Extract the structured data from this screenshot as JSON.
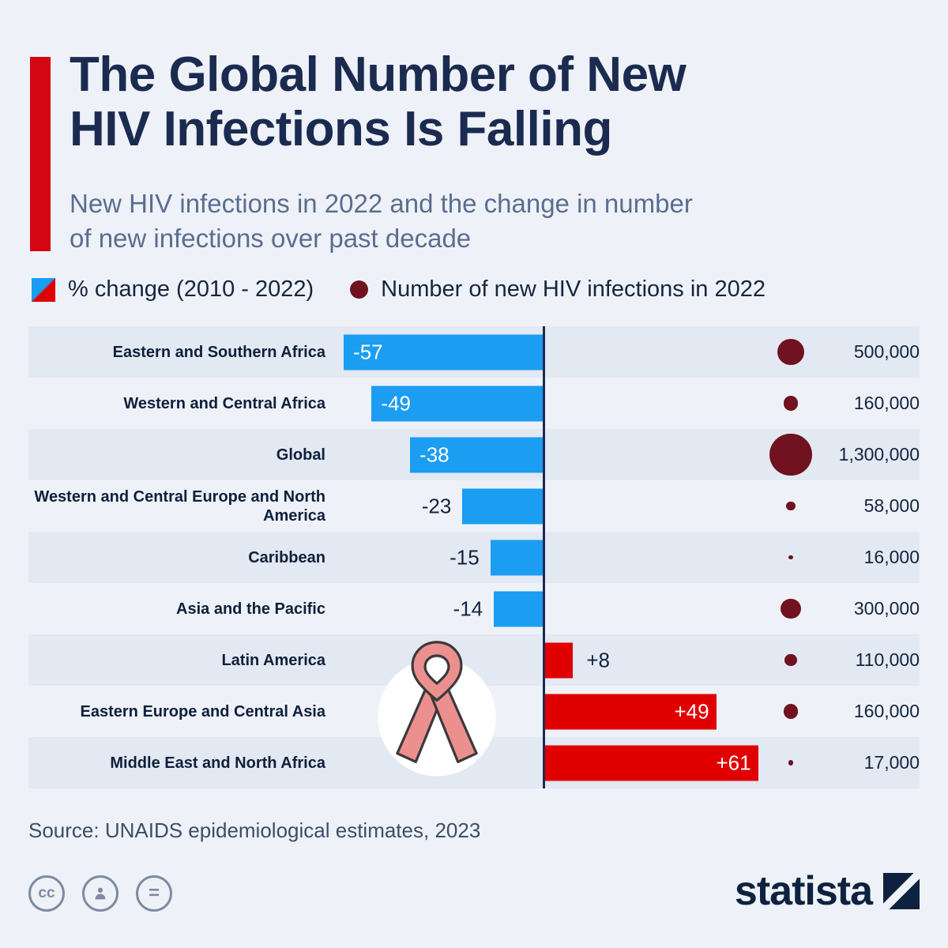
{
  "header": {
    "title_line1": "The Global Number of New",
    "title_line2": "HIV Infections Is Falling",
    "subtitle_line1": "New HIV infections in 2022 and the change in number",
    "subtitle_line2": "of new infections over past decade"
  },
  "legend": {
    "change_label": "% change (2010 - 2022)",
    "infections_label": "Number of new HIV infections in 2022"
  },
  "chart_data": {
    "type": "bar",
    "orientation": "horizontal",
    "diverging": true,
    "title": "The Global Number of New HIV Infections Is Falling",
    "xlabel": "",
    "ylabel": "",
    "xlim": [
      -60,
      65
    ],
    "zero_line": true,
    "legend_position": "top",
    "categories": [
      "Eastern and Southern Africa",
      "Western and Central Africa",
      "Global",
      "Western and Central Europe and North America",
      "Caribbean",
      "Asia and the Pacific",
      "Latin America",
      "Eastern Europe and Central Asia",
      "Middle East and North Africa"
    ],
    "series": [
      {
        "name": "% change (2010 - 2022)",
        "values": [
          -57,
          -49,
          -38,
          -23,
          -15,
          -14,
          8,
          49,
          61
        ],
        "labels": [
          "-57",
          "-49",
          "-38",
          "-23",
          "-15",
          "-14",
          "+8",
          "+49",
          "+61"
        ],
        "color_negative": "#1b9df2",
        "color_positive": "#e00000"
      },
      {
        "name": "Number of new HIV infections in 2022",
        "values": [
          500000,
          160000,
          1300000,
          58000,
          16000,
          300000,
          110000,
          160000,
          17000
        ],
        "labels": [
          "500,000",
          "160,000",
          "1,300,000",
          "58,000",
          "16,000",
          "300,000",
          "110,000",
          "160,000",
          "17,000"
        ],
        "color": "#70121f"
      }
    ]
  },
  "colors": {
    "accent_red": "#d40614",
    "bar_blue": "#1b9df2",
    "bar_red": "#e00000",
    "dot_maroon": "#70121f",
    "navy": "#1b2b50",
    "background": "#eef2f8",
    "row_band": "#e3e9f2"
  },
  "footer": {
    "source": "Source: UNAIDS epidemiological estimates, 2023",
    "brand": "statista",
    "license_cc": "cc",
    "license_nd": "="
  }
}
